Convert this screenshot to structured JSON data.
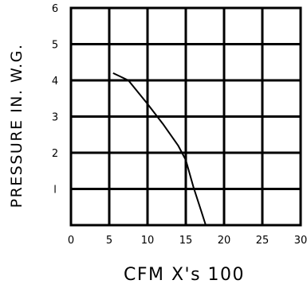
{
  "chart_data": {
    "type": "line",
    "title": "",
    "xlabel": "CFM X's 100",
    "ylabel": "PRESSURE IN. W.G.",
    "xlim": [
      0,
      30
    ],
    "ylim": [
      0,
      6
    ],
    "xticks": [
      0,
      5,
      10,
      15,
      20,
      25,
      30
    ],
    "yticks": [
      1,
      2,
      3,
      4,
      5,
      6
    ],
    "x_tick_labels": [
      "0",
      "5",
      "10",
      "15",
      "20",
      "25",
      "30"
    ],
    "y_tick_labels": [
      "l",
      "2",
      "3",
      "4",
      "5",
      "6"
    ],
    "grid": true,
    "series": [
      {
        "x": [
          5.5,
          7.5,
          10,
          12,
          14,
          15,
          16,
          17,
          17.6
        ],
        "y": [
          4.2,
          4.0,
          3.35,
          2.8,
          2.2,
          1.8,
          1.05,
          0.4,
          0.0
        ]
      }
    ]
  }
}
